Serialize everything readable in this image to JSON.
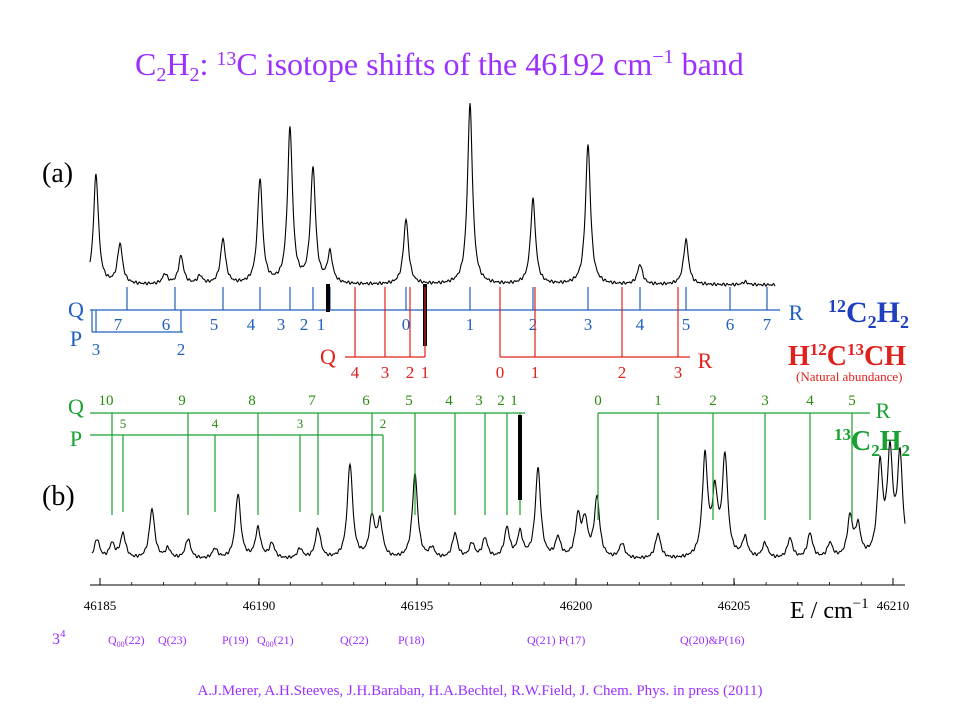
{
  "title": {
    "parts": [
      "C",
      "2",
      "H",
      "2",
      ": ",
      "13",
      "C isotope shifts of the 46192 cm",
      "−1",
      " band"
    ]
  },
  "panel_a": {
    "label": "(a)",
    "q_label": "Q",
    "p_label": "P",
    "r_label": "R",
    "q_numbers": [
      "7",
      "6",
      "5",
      "4",
      "3",
      "2",
      "1"
    ],
    "r_numbers": [
      "0",
      "1",
      "2",
      "3",
      "4",
      "5",
      "6",
      "7"
    ],
    "p_numbers": [
      "3",
      "2"
    ],
    "red": {
      "q_label": "Q",
      "r_label": "R",
      "q_numbers": [
        "4",
        "3",
        "2",
        "1"
      ],
      "r_numbers": [
        "0",
        "1",
        "2",
        "3"
      ]
    },
    "legend_main": [
      "12",
      "C",
      "2",
      "H",
      "2"
    ],
    "legend_minor": [
      "H",
      "12",
      "C",
      "13",
      "CH"
    ],
    "legend_note": "(Natural abundance)"
  },
  "panel_b": {
    "label": "(b)",
    "q_label": "Q",
    "p_label": "P",
    "r_label": "R",
    "q_numbers": [
      "10",
      "9",
      "8",
      "7",
      "6",
      "5",
      "4",
      "3",
      "2",
      "1"
    ],
    "r_numbers": [
      "0",
      "1",
      "2",
      "3",
      "4",
      "5"
    ],
    "p_numbers": [
      "5",
      "4",
      "3",
      "2"
    ],
    "legend": [
      "13",
      "C",
      "2",
      "H",
      "2"
    ]
  },
  "x_axis": {
    "ticks": [
      "46185",
      "46190",
      "46195",
      "46200",
      "46205",
      "46210"
    ],
    "label": [
      "E / cm",
      "−1"
    ]
  },
  "assignments": [
    [
      "3",
      "4"
    ],
    [
      "Q",
      "00",
      "(22)"
    ],
    "Q(23)",
    "P(19)",
    [
      "Q",
      "00",
      "(21)"
    ],
    "Q(22)",
    "P(18)",
    "Q(21) P(17)",
    "Q(20)&P(16)"
  ],
  "citation": "A.J.Merer, A.H.Steeves, J.H.Baraban, H.A.Bechtel, R.W.Field, J. Chem. Phys. in press (2011)"
}
